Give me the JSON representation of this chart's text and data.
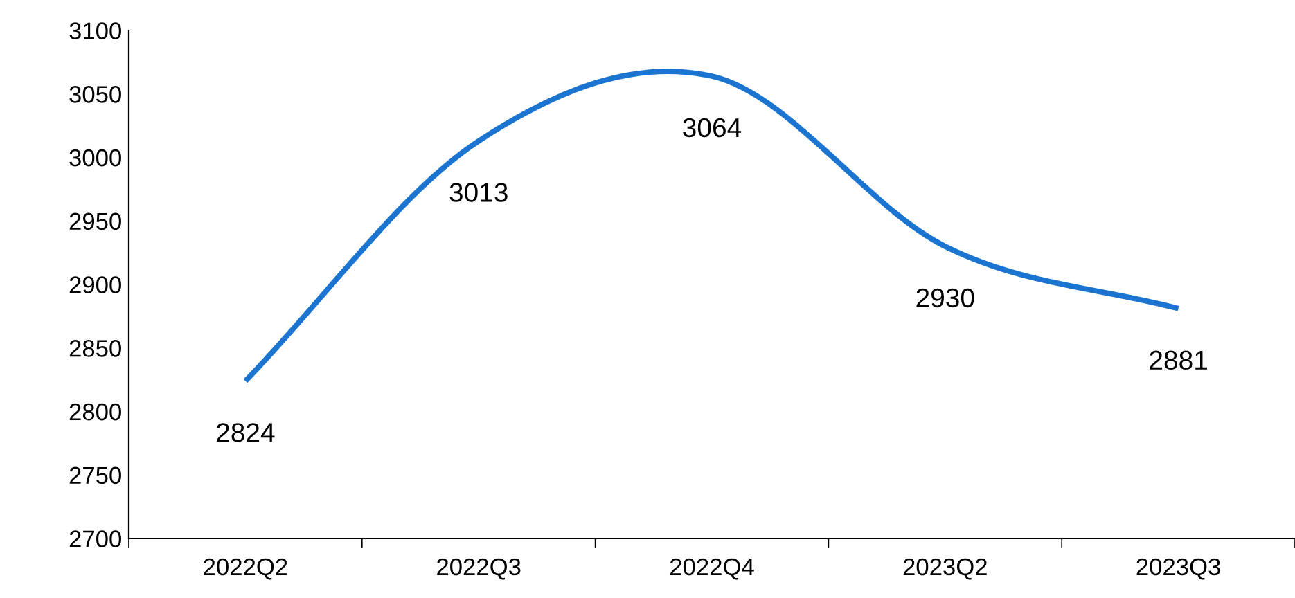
{
  "chart_data": {
    "type": "line",
    "categories": [
      "2022Q2",
      "2022Q3",
      "2022Q4",
      "2023Q2",
      "2023Q3"
    ],
    "values": [
      2824,
      3013,
      3064,
      2930,
      2881
    ],
    "color": "#1b75d0",
    "ylim": [
      2700,
      3100
    ],
    "yticks": [
      2700,
      2750,
      2800,
      2850,
      2900,
      2950,
      3000,
      3050,
      3100
    ],
    "grid": false,
    "legend": false,
    "marker": "none",
    "line_style": "solid",
    "data_labels": true
  }
}
